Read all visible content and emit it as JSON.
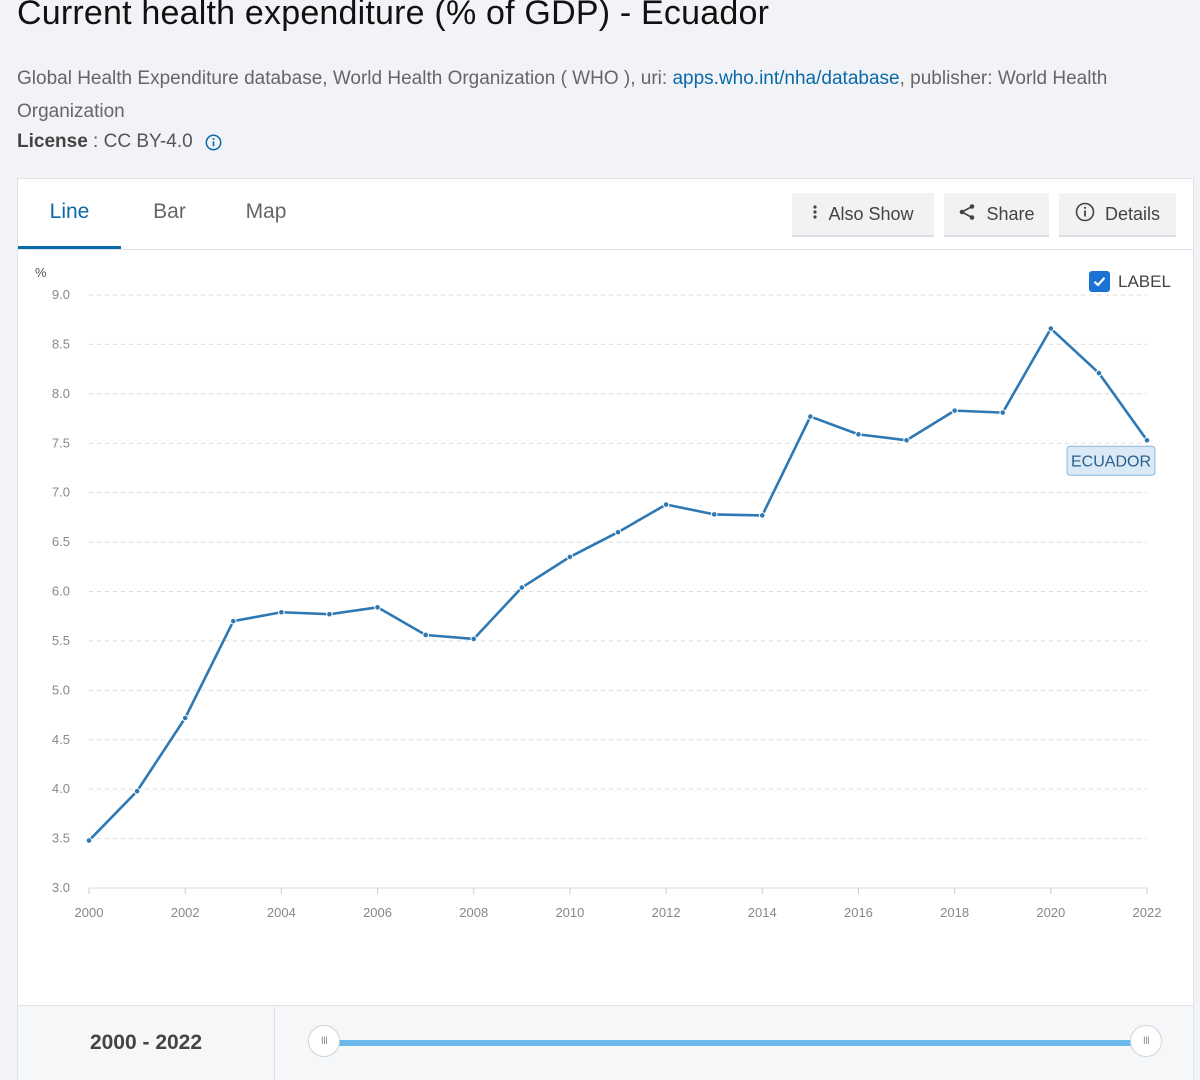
{
  "page": {
    "title": "Current health expenditure (% of GDP) - Ecuador",
    "source_prefix": "Global Health Expenditure database, World Health Organization ( WHO ), uri: ",
    "source_link": "apps.who.int/nha/database",
    "source_suffix": ", publisher: World Health Organization",
    "license_label": "License",
    "license_value": " : CC BY-4.0"
  },
  "tabs": [
    {
      "label": "Line",
      "active": true
    },
    {
      "label": "Bar",
      "active": false
    },
    {
      "label": "Map",
      "active": false
    }
  ],
  "toolbar": {
    "also_show": "Also Show",
    "share": "Share",
    "details": "Details"
  },
  "label_toggle": {
    "label": "LABEL",
    "checked": true
  },
  "chart_data": {
    "type": "line",
    "ylabel": "%",
    "ylim": [
      3.0,
      9.0
    ],
    "yticks": [
      "3.0",
      "3.5",
      "4.0",
      "4.5",
      "5.0",
      "5.5",
      "6.0",
      "6.5",
      "7.0",
      "7.5",
      "8.0",
      "8.5",
      "9.0"
    ],
    "xlim": [
      2000,
      2022
    ],
    "xticks": [
      "2000",
      "2002",
      "2004",
      "2006",
      "2008",
      "2010",
      "2012",
      "2014",
      "2016",
      "2018",
      "2020",
      "2022"
    ],
    "grid": true,
    "series": [
      {
        "name": "ECUADOR",
        "color": "#2e78b3",
        "x": [
          2000,
          2001,
          2002,
          2003,
          2004,
          2005,
          2006,
          2007,
          2008,
          2009,
          2010,
          2011,
          2012,
          2013,
          2014,
          2015,
          2016,
          2017,
          2018,
          2019,
          2020,
          2021,
          2022
        ],
        "y": [
          3.48,
          3.98,
          4.72,
          5.7,
          5.79,
          5.77,
          5.84,
          5.56,
          5.52,
          6.04,
          6.35,
          6.6,
          6.88,
          6.78,
          6.77,
          7.77,
          7.59,
          7.53,
          7.83,
          7.81,
          8.66,
          8.21,
          7.53
        ]
      }
    ]
  },
  "range": {
    "start": "2000",
    "sep": " - ",
    "end": "2022",
    "handle_glyph": "III"
  }
}
